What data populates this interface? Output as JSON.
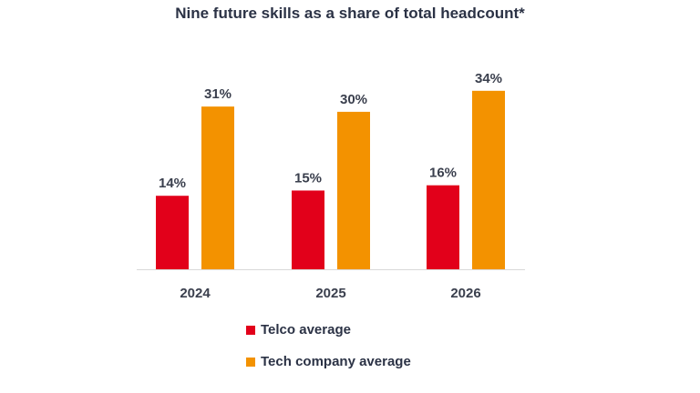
{
  "chart_data": {
    "type": "bar",
    "title": "Nine future skills as a share of total headcount*",
    "categories": [
      "2024",
      "2025",
      "2026"
    ],
    "series": [
      {
        "name": "Telco average",
        "values": [
          14,
          15,
          16
        ],
        "color": "#e2001a"
      },
      {
        "name": "Tech company average",
        "values": [
          31,
          30,
          34
        ],
        "color": "#f39200"
      }
    ],
    "value_suffix": "%",
    "ylim": [
      0,
      35
    ],
    "grid": false,
    "legend_position": "bottom"
  }
}
